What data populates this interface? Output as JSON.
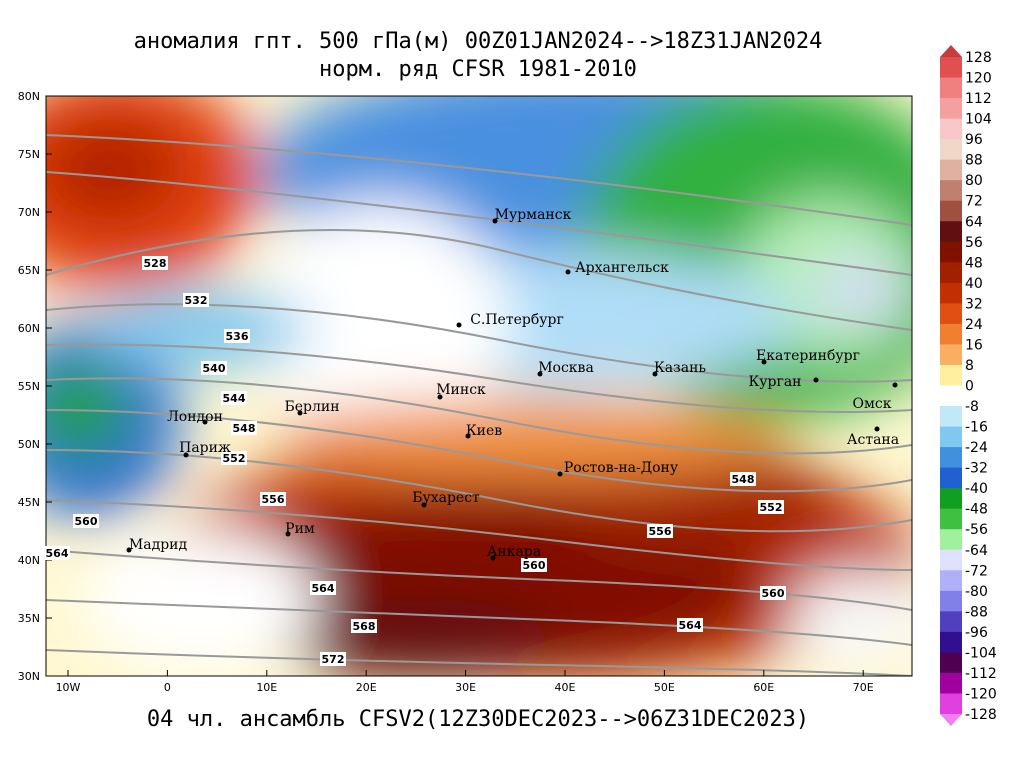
{
  "title": {
    "line1": "аномалия гпт. 500 гПа(м) 00Z01JAN2024-->18Z31JAN2024",
    "line2": "норм. ряд CFSR 1981-2010"
  },
  "footer": "04 чл. ансамбль CFSV2(12Z30DEC2023-->06Z31DEC2023)",
  "lat_labels": [
    "80N",
    "75N",
    "70N",
    "65N",
    "60N",
    "55N",
    "50N",
    "45N",
    "40N",
    "35N",
    "30N"
  ],
  "lon_labels": [
    "10W",
    "0",
    "10E",
    "20E",
    "30E",
    "40E",
    "50E",
    "60E",
    "70E"
  ],
  "contour_labels": [
    528,
    532,
    536,
    540,
    544,
    548,
    552,
    556,
    560,
    564,
    548,
    552,
    556,
    560,
    560,
    564,
    564,
    568,
    572
  ],
  "cities": [
    "Мурманск",
    "Архангельск",
    "С.Петербург",
    "Москва",
    "Казань",
    "Екатеринбург",
    "Курган",
    "Омск",
    "Астана",
    "Минск",
    "Берлин",
    "Лондон",
    "Париж",
    "Киев",
    "Ростов-на-Дону",
    "Бухарест",
    "Рим",
    "Мадрид",
    "Анкара"
  ],
  "colorbar": {
    "levels": [
      128,
      120,
      112,
      104,
      96,
      88,
      80,
      72,
      64,
      56,
      48,
      40,
      32,
      24,
      16,
      8,
      0,
      -8,
      -16,
      -24,
      -32,
      -40,
      -48,
      -56,
      -64,
      -72,
      -80,
      -88,
      -96,
      -104,
      -112,
      -120,
      -128
    ],
    "colors": [
      "#e05050",
      "#f08080",
      "#f4a0a0",
      "#f8c8c8",
      "#f0d8c8",
      "#e0b0a0",
      "#c08070",
      "#a05040",
      "#601010",
      "#801000",
      "#a02000",
      "#c03000",
      "#e05010",
      "#f08030",
      "#f8b060",
      "#fff0a0",
      "#ffffff",
      "#c0e8f8",
      "#80c8f0",
      "#4090e0",
      "#2060d0",
      "#10a020",
      "#40c040",
      "#a0f0a0",
      "#e0e0ff",
      "#b0b0f8",
      "#8080e8",
      "#5040c0",
      "#301090",
      "#500050",
      "#a000a0",
      "#e040e0"
    ],
    "top_color": "#c83c3c",
    "bottom_color": "#f080f0"
  }
}
